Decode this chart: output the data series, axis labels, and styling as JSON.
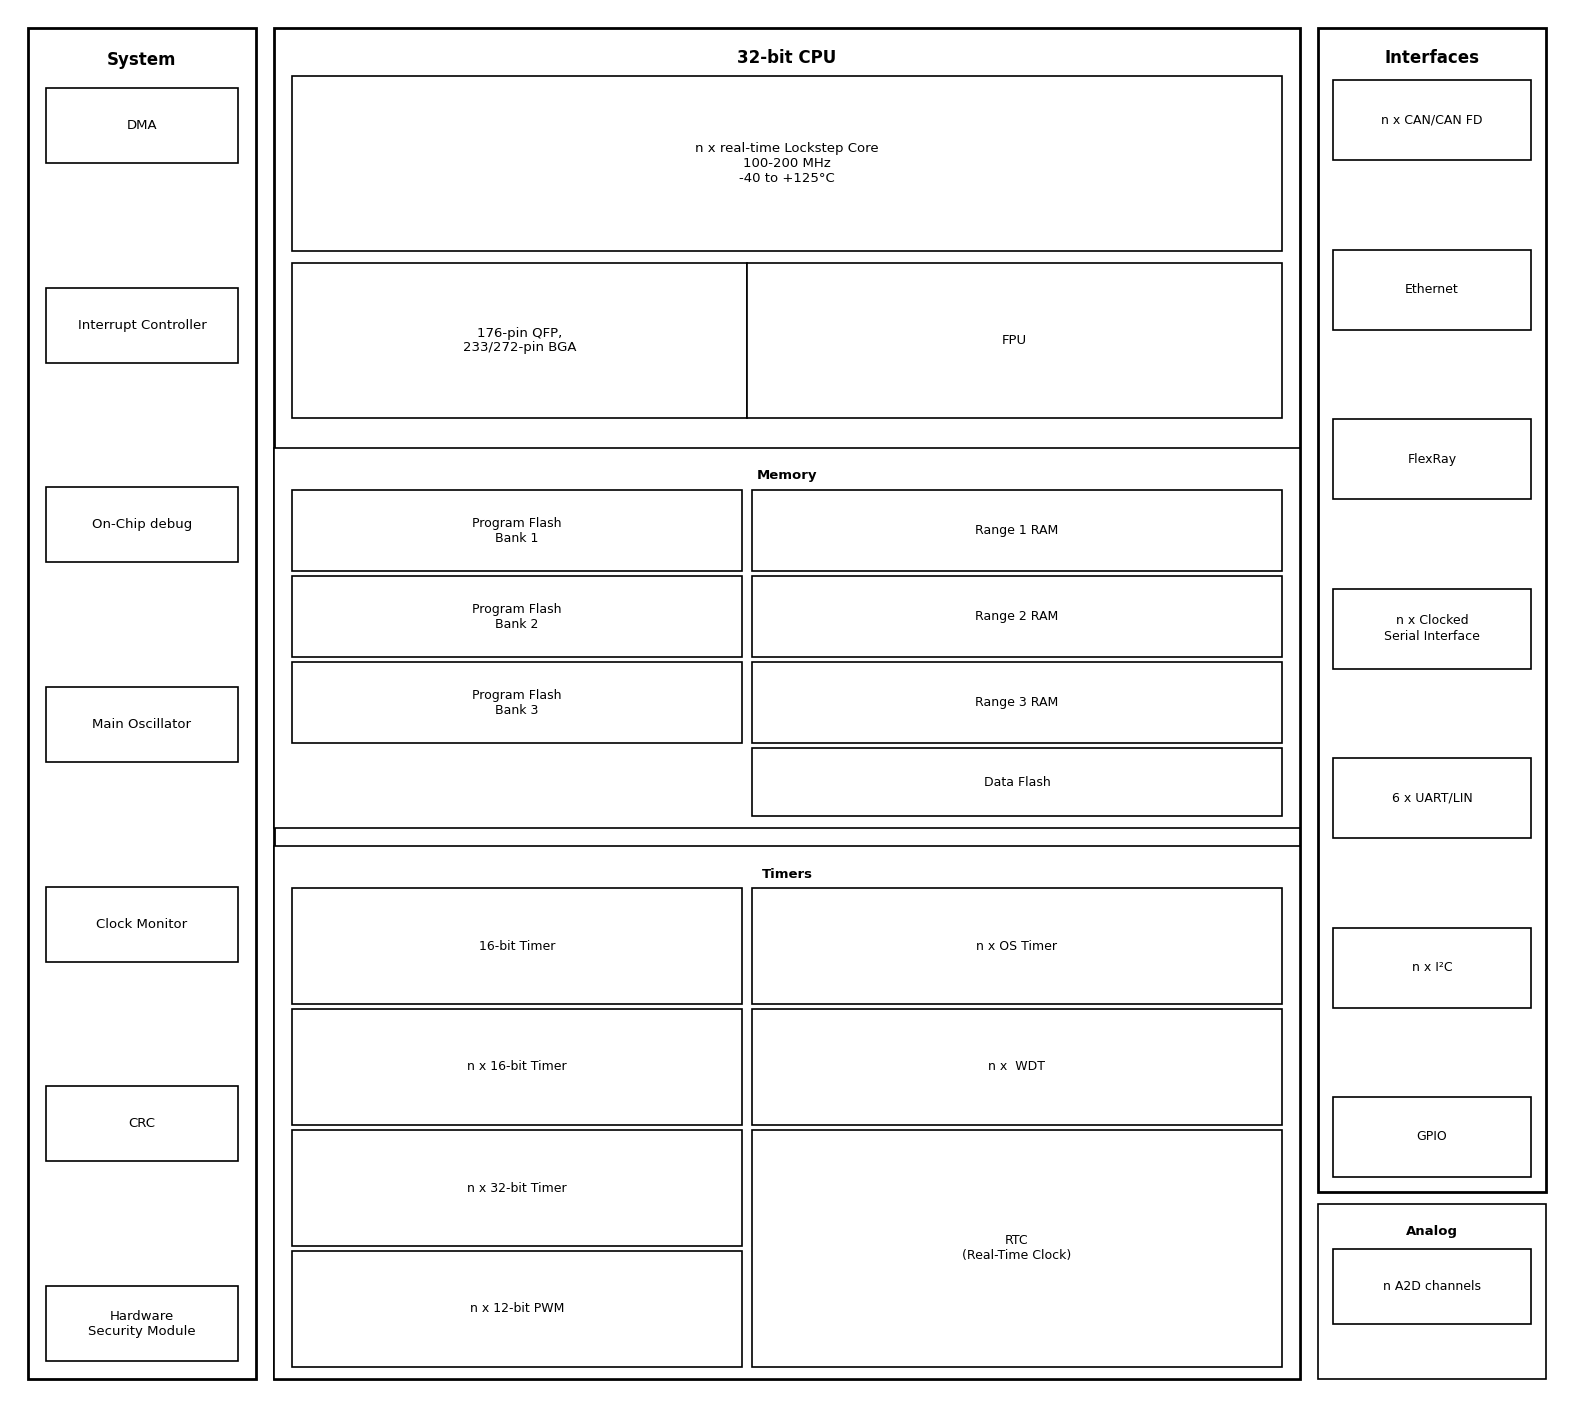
{
  "bg_color": "#ffffff",
  "border_color": "#000000",
  "lw_outer": 2.0,
  "lw_inner": 1.2,
  "fs_header": 12,
  "fs_label": 9.5,
  "fs_small": 9,
  "system": {
    "label": "System",
    "items": [
      "DMA",
      "Interrupt Controller",
      "On-Chip debug",
      "Main Oscillator",
      "Clock Monitor",
      "CRC",
      "Hardware\nSecurity Module"
    ]
  },
  "cpu_label": "32-bit CPU",
  "core_text": "n x real-time Lockstep Core\n100-200 MHz\n-40 to +125°C",
  "pin_text": "176-pin QFP,\n233/272-pin BGA",
  "fpu_text": "FPU",
  "memory_label": "Memory",
  "pf_labels": [
    "Program Flash\nBank 1",
    "Program Flash\nBank 2",
    "Program Flash\nBank 3"
  ],
  "ram_labels": [
    "Range 1 RAM",
    "Range 2 RAM",
    "Range 3 RAM"
  ],
  "df_label": "Data Flash",
  "timers_label": "Timers",
  "timer_left": [
    "16-bit Timer",
    "n x 16-bit Timer",
    "n x 32-bit Timer",
    "n x 12-bit PWM"
  ],
  "timer_right_top": [
    "n x OS Timer",
    "n x  WDT"
  ],
  "rtc_label": "RTC\n(Real-Time Clock)",
  "interfaces_label": "Interfaces",
  "interface_items": [
    "n x CAN/CAN FD",
    "Ethernet",
    "FlexRay",
    "n x Clocked\nSerial Interface",
    "6 x UART/LIN",
    "n x I²C",
    "GPIO"
  ],
  "analog_label": "Analog",
  "analog_item": "n A2D channels"
}
